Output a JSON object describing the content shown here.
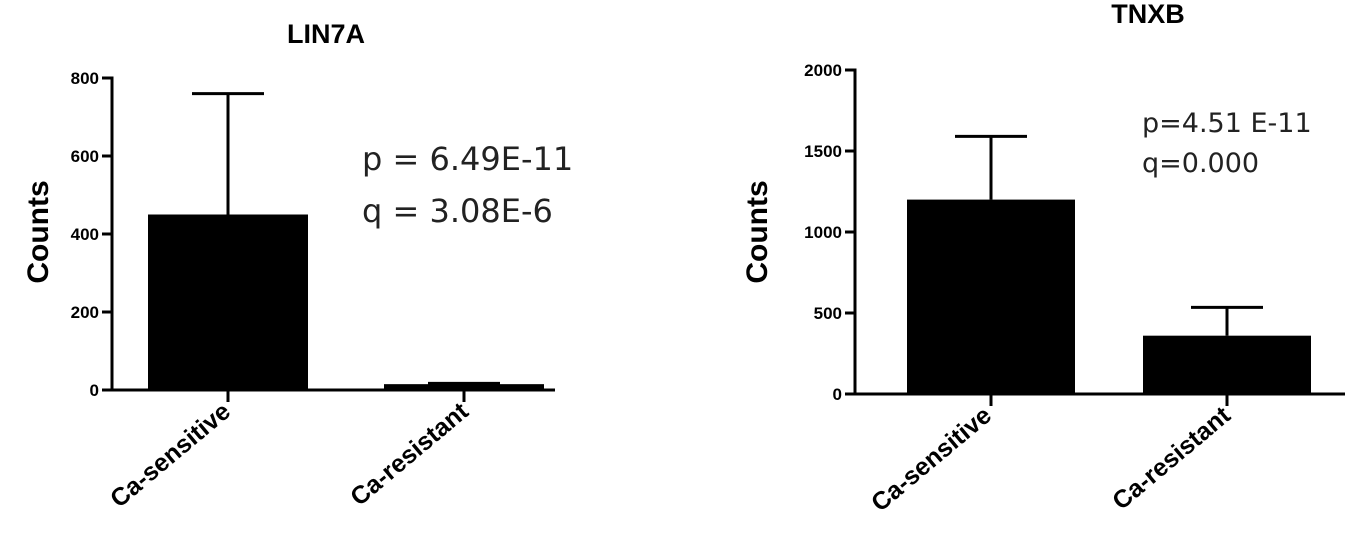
{
  "chart_data": [
    {
      "type": "bar",
      "title": "LIN7A",
      "ylabel": "Counts",
      "categories": [
        "Ca-sensitive",
        "Ca-resistant"
      ],
      "values": [
        450,
        15
      ],
      "error_upper": [
        760,
        17
      ],
      "ylim": [
        0,
        800
      ],
      "yticks": [
        0,
        200,
        400,
        600,
        800
      ],
      "annotations": [
        "p = 6.49E-11",
        "q = 3.08E-6"
      ],
      "bar_color": "#000000",
      "grid": false
    },
    {
      "type": "bar",
      "title": "TNXB",
      "ylabel": "Counts",
      "categories": [
        "Ca-sensitive",
        "Ca-resistant"
      ],
      "values": [
        1200,
        360
      ],
      "error_upper": [
        1590,
        535
      ],
      "ylim": [
        0,
        2000
      ],
      "yticks": [
        0,
        500,
        1000,
        1500,
        2000
      ],
      "annotations": [
        "p=4.51 E-11",
        "q=0.000"
      ],
      "bar_color": "#000000",
      "grid": false
    }
  ]
}
